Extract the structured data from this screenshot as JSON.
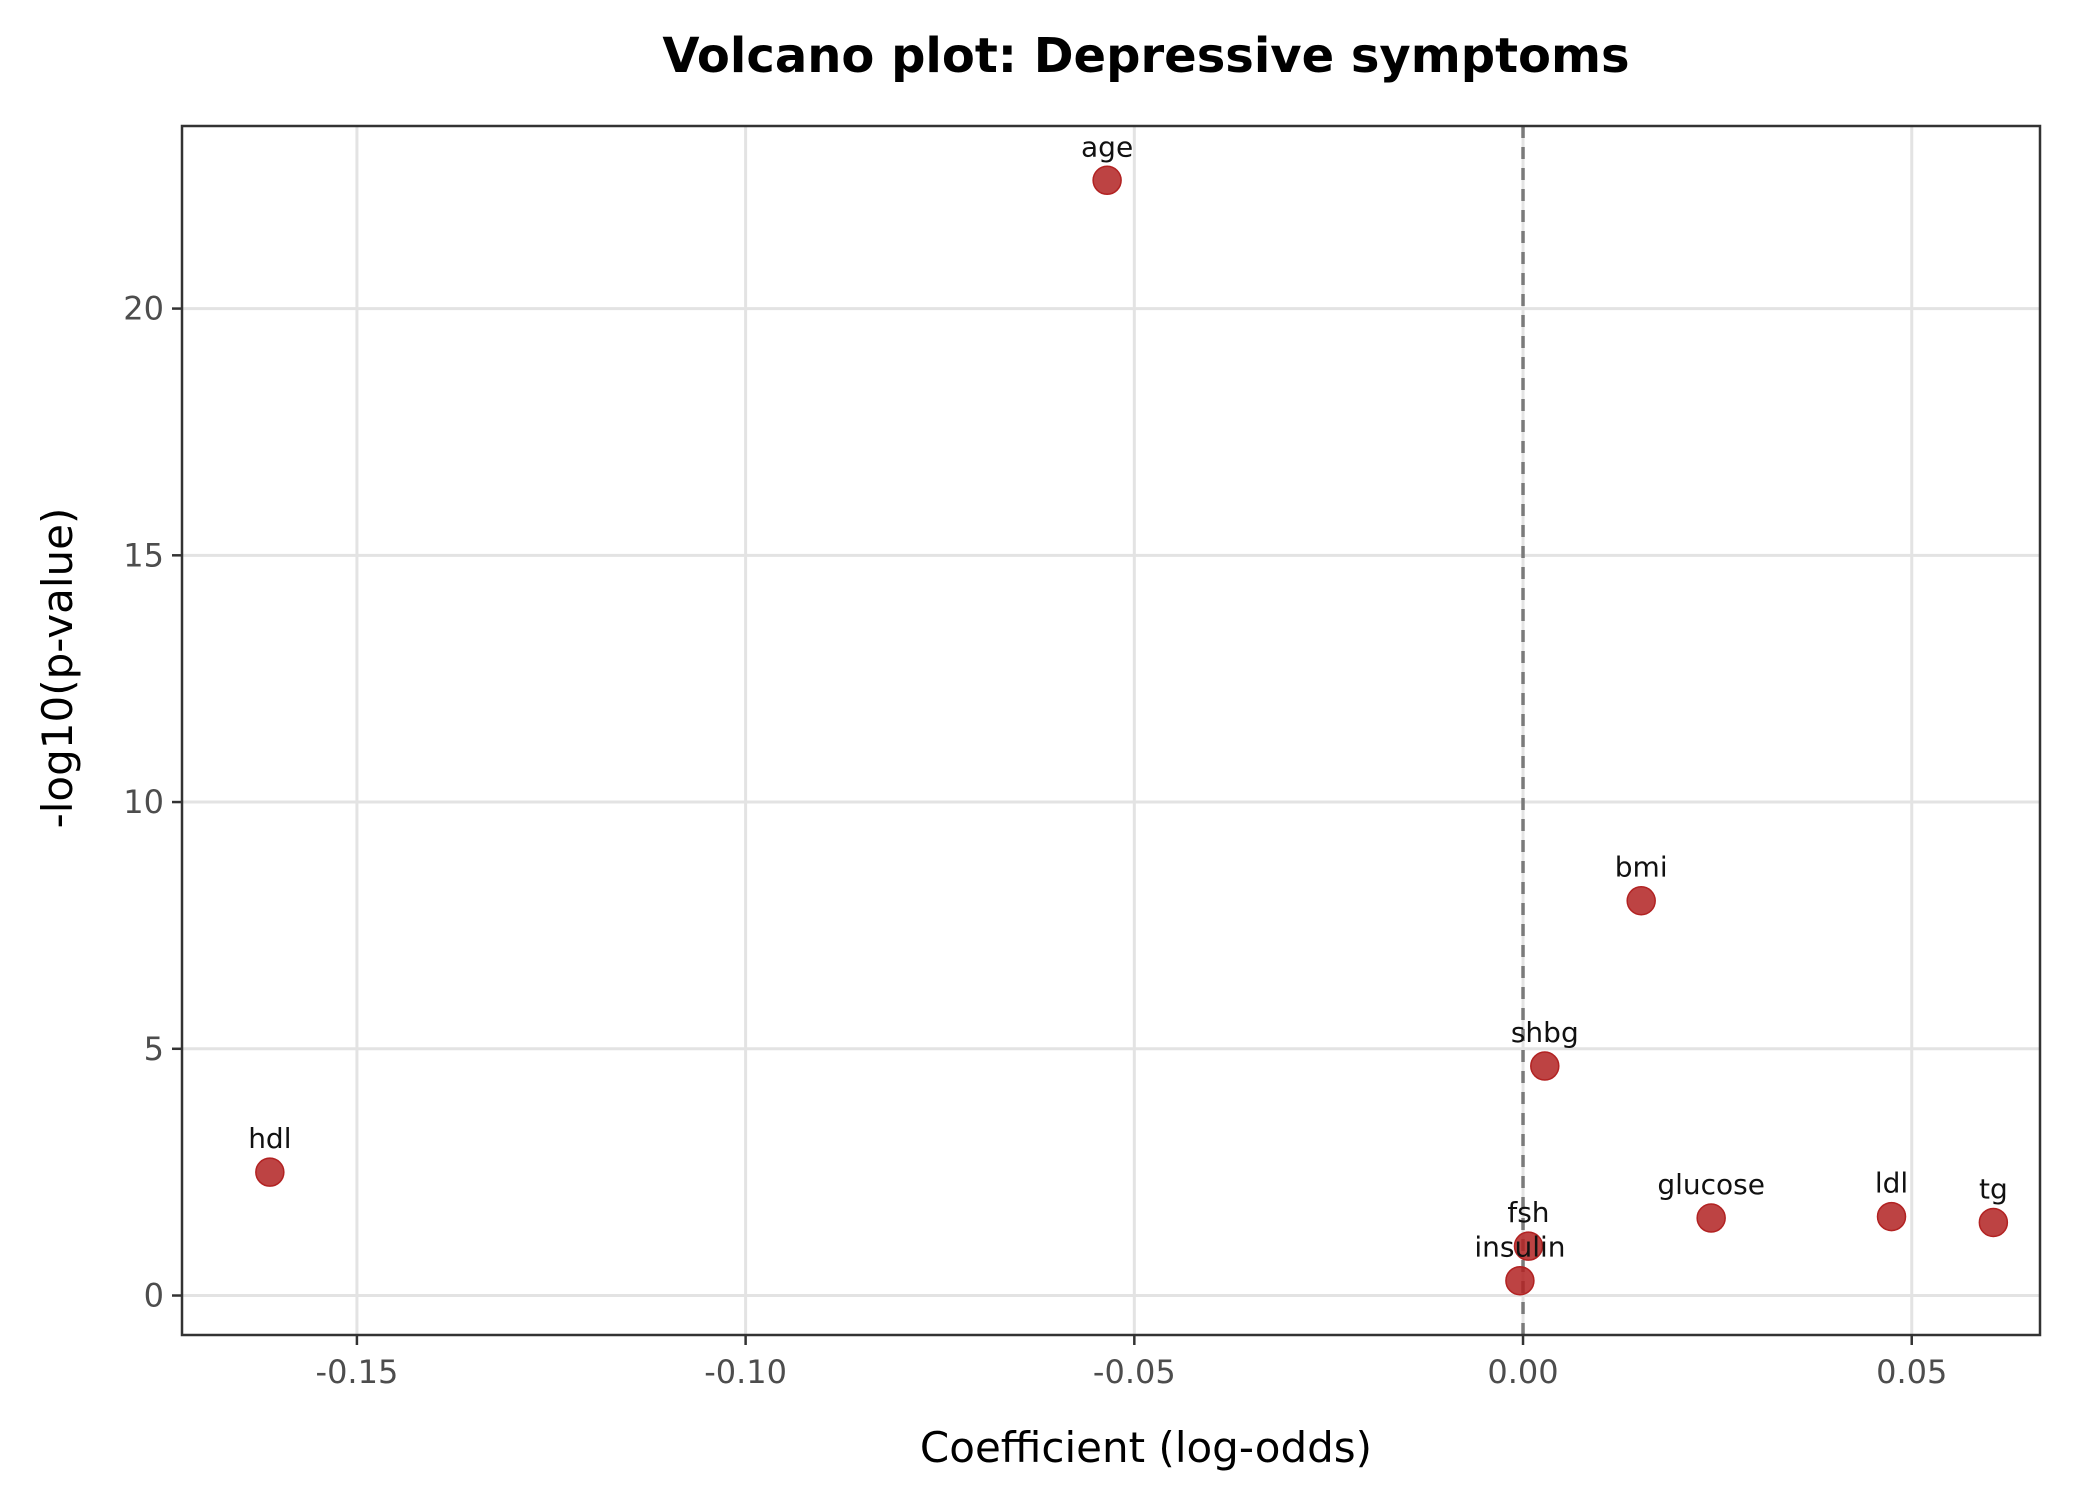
{
  "chart_data": {
    "type": "scatter",
    "title": "Volcano plot: Depressive symptoms",
    "xlabel": "Coefficient (log-odds)",
    "ylabel": "-log10(p-value)",
    "xlim": [
      -0.1725,
      0.0665
    ],
    "ylim": [
      -0.8,
      23.7
    ],
    "xticks": [
      -0.15,
      -0.1,
      -0.05,
      0.0,
      0.05
    ],
    "xtick_labels": [
      "-0.15",
      "-0.10",
      "-0.05",
      "0.00",
      "0.05"
    ],
    "yticks": [
      0,
      5,
      10,
      15,
      20
    ],
    "ytick_labels": [
      "0",
      "5",
      "10",
      "15",
      "20"
    ],
    "grid": true,
    "reference_line": {
      "x": 0.0,
      "style": "dashed"
    },
    "point_color": "#b22222",
    "points": [
      {
        "label": "age",
        "x": -0.0535,
        "y": 22.6
      },
      {
        "label": "bmi",
        "x": 0.0152,
        "y": 8.0
      },
      {
        "label": "shbg",
        "x": 0.0028,
        "y": 4.65
      },
      {
        "label": "hdl",
        "x": -0.1612,
        "y": 2.5
      },
      {
        "label": "glucose",
        "x": 0.0242,
        "y": 1.57
      },
      {
        "label": "ldl",
        "x": 0.0474,
        "y": 1.6
      },
      {
        "label": "tg",
        "x": 0.0605,
        "y": 1.48
      },
      {
        "label": "fsh",
        "x": 0.0007,
        "y": 1.0
      },
      {
        "label": "insulin",
        "x": -0.0004,
        "y": 0.3
      }
    ]
  }
}
